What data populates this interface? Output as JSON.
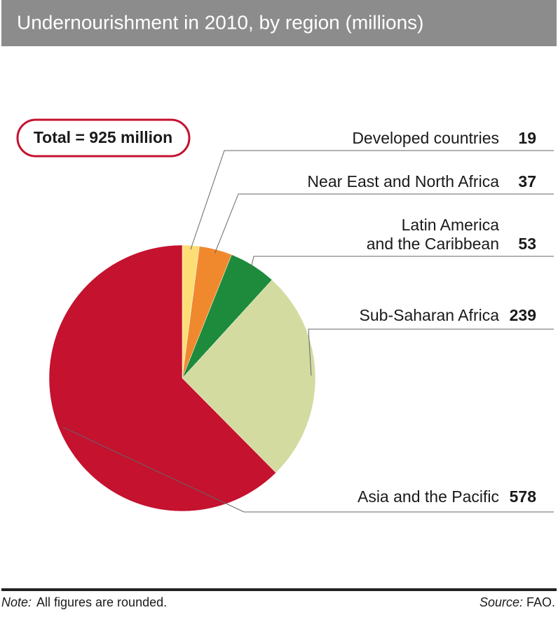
{
  "chart_data": {
    "type": "pie",
    "title": "Undernourishment in 2010, by region (millions)",
    "annotation": "Total = 925 million",
    "categories": [
      "Developed countries",
      "Near East and North Africa",
      "Latin America\nand the Caribbean",
      "Sub-Saharan Africa",
      "Asia and the Pacific"
    ],
    "values": [
      19,
      37,
      53,
      239,
      578
    ],
    "colors": [
      "#fddd76",
      "#f0892e",
      "#1d8b3b",
      "#d3dba0",
      "#c4122f"
    ],
    "note_label": "Note:",
    "note": "All figures are rounded.",
    "source_label": "Source:",
    "source": "FAO."
  }
}
